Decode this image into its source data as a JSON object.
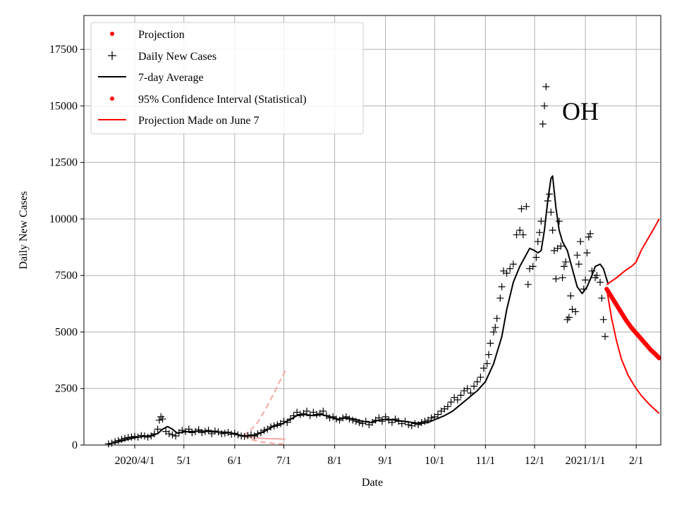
{
  "chart_data": {
    "type": "line",
    "state_label": "OH",
    "xlabel": "Date",
    "ylabel": "Daily New Cases",
    "xlim": [
      0,
      352
    ],
    "ylim": [
      0,
      19000
    ],
    "x_unit": "days since 2020-03-01",
    "x_ticks": [
      {
        "day": 31,
        "label": "2020/4/1"
      },
      {
        "day": 61,
        "label": "5/1"
      },
      {
        "day": 92,
        "label": "6/1"
      },
      {
        "day": 122,
        "label": "7/1"
      },
      {
        "day": 153,
        "label": "8/1"
      },
      {
        "day": 184,
        "label": "9/1"
      },
      {
        "day": 214,
        "label": "10/1"
      },
      {
        "day": 245,
        "label": "11/1"
      },
      {
        "day": 275,
        "label": "12/1"
      },
      {
        "day": 306,
        "label": "2021/1/1"
      },
      {
        "day": 337,
        "label": "2/1"
      }
    ],
    "y_ticks": [
      {
        "value": 0,
        "label": "0"
      },
      {
        "value": 2500,
        "label": "2500"
      },
      {
        "value": 5000,
        "label": "5000"
      },
      {
        "value": 7500,
        "label": "7500"
      },
      {
        "value": 10000,
        "label": "10000"
      },
      {
        "value": 12500,
        "label": "12500"
      },
      {
        "value": 15000,
        "label": "15000"
      },
      {
        "value": 17500,
        "label": "17500"
      }
    ],
    "grid": true,
    "legend": {
      "position": "top-left",
      "entries": [
        {
          "label": "Projection",
          "marker": "dot",
          "color": "#ff0000"
        },
        {
          "label": "Daily New Cases",
          "marker": "plus",
          "color": "#000000"
        },
        {
          "label": "7-day Average",
          "marker": "line",
          "color": "#000000"
        },
        {
          "label": "95% Confidence Interval (Statistical)",
          "marker": "dot",
          "color": "#ff0000"
        },
        {
          "label": "Projection Made on June 7",
          "marker": "line",
          "color": "#ff0000"
        }
      ]
    },
    "avg_keypoints": [
      [
        15,
        40
      ],
      [
        20,
        120
      ],
      [
        25,
        220
      ],
      [
        31,
        320
      ],
      [
        36,
        380
      ],
      [
        41,
        420
      ],
      [
        45,
        500
      ],
      [
        48,
        700
      ],
      [
        51,
        820
      ],
      [
        54,
        700
      ],
      [
        57,
        520
      ],
      [
        61,
        580
      ],
      [
        66,
        600
      ],
      [
        72,
        620
      ],
      [
        80,
        580
      ],
      [
        88,
        560
      ],
      [
        92,
        500
      ],
      [
        96,
        420
      ],
      [
        100,
        400
      ],
      [
        105,
        450
      ],
      [
        110,
        600
      ],
      [
        115,
        800
      ],
      [
        120,
        900
      ],
      [
        125,
        1100
      ],
      [
        130,
        1300
      ],
      [
        135,
        1350
      ],
      [
        140,
        1300
      ],
      [
        145,
        1350
      ],
      [
        150,
        1250
      ],
      [
        155,
        1150
      ],
      [
        160,
        1200
      ],
      [
        165,
        1150
      ],
      [
        170,
        1050
      ],
      [
        175,
        1000
      ],
      [
        180,
        1100
      ],
      [
        185,
        1150
      ],
      [
        190,
        1100
      ],
      [
        195,
        1050
      ],
      [
        200,
        1000
      ],
      [
        205,
        950
      ],
      [
        210,
        1000
      ],
      [
        215,
        1150
      ],
      [
        220,
        1300
      ],
      [
        225,
        1500
      ],
      [
        230,
        1800
      ],
      [
        235,
        2100
      ],
      [
        240,
        2400
      ],
      [
        245,
        2800
      ],
      [
        250,
        3600
      ],
      [
        255,
        4800
      ],
      [
        258,
        6000
      ],
      [
        262,
        7200
      ],
      [
        266,
        7900
      ],
      [
        269,
        8300
      ],
      [
        272,
        8700
      ],
      [
        275,
        8600
      ],
      [
        277,
        8500
      ],
      [
        279,
        8600
      ],
      [
        281,
        9500
      ],
      [
        283,
        10800
      ],
      [
        285,
        11800
      ],
      [
        286,
        11900
      ],
      [
        288,
        10500
      ],
      [
        290,
        9500
      ],
      [
        292,
        9000
      ],
      [
        295,
        8600
      ],
      [
        298,
        7800
      ],
      [
        301,
        7000
      ],
      [
        304,
        6700
      ],
      [
        307,
        7000
      ],
      [
        310,
        7500
      ],
      [
        312,
        7900
      ],
      [
        315,
        8000
      ],
      [
        317,
        7800
      ],
      [
        320,
        7100
      ]
    ],
    "daily_cases": [
      [
        15,
        50
      ],
      [
        17,
        80
      ],
      [
        19,
        150
      ],
      [
        21,
        200
      ],
      [
        23,
        250
      ],
      [
        25,
        300
      ],
      [
        27,
        330
      ],
      [
        29,
        350
      ],
      [
        31,
        380
      ],
      [
        33,
        350
      ],
      [
        35,
        420
      ],
      [
        37,
        400
      ],
      [
        39,
        350
      ],
      [
        41,
        400
      ],
      [
        43,
        500
      ],
      [
        45,
        700
      ],
      [
        46,
        1100
      ],
      [
        47,
        1250
      ],
      [
        48,
        1150
      ],
      [
        50,
        600
      ],
      [
        52,
        500
      ],
      [
        54,
        450
      ],
      [
        56,
        400
      ],
      [
        58,
        550
      ],
      [
        60,
        650
      ],
      [
        62,
        600
      ],
      [
        64,
        700
      ],
      [
        66,
        550
      ],
      [
        68,
        600
      ],
      [
        70,
        680
      ],
      [
        72,
        550
      ],
      [
        74,
        600
      ],
      [
        76,
        650
      ],
      [
        78,
        500
      ],
      [
        80,
        620
      ],
      [
        82,
        580
      ],
      [
        84,
        500
      ],
      [
        86,
        520
      ],
      [
        88,
        560
      ],
      [
        90,
        480
      ],
      [
        92,
        520
      ],
      [
        94,
        450
      ],
      [
        96,
        400
      ],
      [
        98,
        380
      ],
      [
        100,
        420
      ],
      [
        102,
        450
      ],
      [
        104,
        400
      ],
      [
        106,
        500
      ],
      [
        108,
        550
      ],
      [
        110,
        650
      ],
      [
        112,
        700
      ],
      [
        114,
        800
      ],
      [
        116,
        850
      ],
      [
        118,
        900
      ],
      [
        120,
        950
      ],
      [
        122,
        1050
      ],
      [
        124,
        1000
      ],
      [
        126,
        1150
      ],
      [
        128,
        1300
      ],
      [
        130,
        1450
      ],
      [
        132,
        1350
      ],
      [
        134,
        1400
      ],
      [
        136,
        1500
      ],
      [
        138,
        1300
      ],
      [
        140,
        1450
      ],
      [
        142,
        1350
      ],
      [
        144,
        1400
      ],
      [
        146,
        1500
      ],
      [
        148,
        1300
      ],
      [
        150,
        1200
      ],
      [
        152,
        1250
      ],
      [
        154,
        1150
      ],
      [
        156,
        1100
      ],
      [
        158,
        1200
      ],
      [
        160,
        1250
      ],
      [
        162,
        1150
      ],
      [
        164,
        1100
      ],
      [
        166,
        1050
      ],
      [
        168,
        1000
      ],
      [
        170,
        950
      ],
      [
        172,
        1050
      ],
      [
        174,
        900
      ],
      [
        176,
        1000
      ],
      [
        178,
        1100
      ],
      [
        180,
        1200
      ],
      [
        182,
        1050
      ],
      [
        184,
        1250
      ],
      [
        186,
        1100
      ],
      [
        188,
        1000
      ],
      [
        190,
        1150
      ],
      [
        192,
        1050
      ],
      [
        194,
        950
      ],
      [
        196,
        1050
      ],
      [
        198,
        900
      ],
      [
        200,
        850
      ],
      [
        202,
        950
      ],
      [
        204,
        900
      ],
      [
        206,
        1000
      ],
      [
        208,
        1050
      ],
      [
        210,
        1100
      ],
      [
        212,
        1200
      ],
      [
        214,
        1250
      ],
      [
        216,
        1350
      ],
      [
        218,
        1500
      ],
      [
        220,
        1600
      ],
      [
        222,
        1700
      ],
      [
        224,
        1900
      ],
      [
        226,
        2100
      ],
      [
        228,
        2000
      ],
      [
        230,
        2200
      ],
      [
        232,
        2400
      ],
      [
        234,
        2500
      ],
      [
        236,
        2300
      ],
      [
        238,
        2600
      ],
      [
        240,
        2800
      ],
      [
        242,
        3000
      ],
      [
        244,
        3400
      ],
      [
        246,
        3600
      ],
      [
        247,
        4000
      ],
      [
        248,
        4500
      ],
      [
        250,
        5000
      ],
      [
        251,
        5200
      ],
      [
        252,
        5600
      ],
      [
        254,
        6500
      ],
      [
        255,
        7000
      ],
      [
        256,
        7700
      ],
      [
        258,
        7600
      ],
      [
        260,
        7800
      ],
      [
        262,
        8000
      ],
      [
        264,
        9300
      ],
      [
        266,
        9500
      ],
      [
        267,
        10450
      ],
      [
        268,
        9300
      ],
      [
        270,
        10550
      ],
      [
        271,
        7100
      ],
      [
        272,
        7800
      ],
      [
        274,
        7900
      ],
      [
        276,
        8300
      ],
      [
        277,
        9000
      ],
      [
        278,
        9400
      ],
      [
        279,
        9900
      ],
      [
        280,
        14200
      ],
      [
        281,
        15000
      ],
      [
        282,
        15850
      ],
      [
        283,
        10800
      ],
      [
        284,
        11100
      ],
      [
        285,
        10300
      ],
      [
        286,
        9500
      ],
      [
        287,
        8600
      ],
      [
        288,
        7350
      ],
      [
        289,
        8700
      ],
      [
        290,
        9900
      ],
      [
        291,
        8800
      ],
      [
        292,
        7400
      ],
      [
        293,
        7900
      ],
      [
        294,
        8100
      ],
      [
        295,
        5550
      ],
      [
        296,
        5650
      ],
      [
        297,
        6600
      ],
      [
        298,
        6000
      ],
      [
        300,
        5900
      ],
      [
        301,
        8400
      ],
      [
        302,
        8000
      ],
      [
        303,
        9000
      ],
      [
        305,
        6900
      ],
      [
        306,
        7300
      ],
      [
        307,
        8500
      ],
      [
        308,
        9200
      ],
      [
        309,
        9350
      ],
      [
        310,
        7700
      ],
      [
        312,
        7400
      ],
      [
        313,
        7500
      ],
      [
        315,
        7200
      ],
      [
        316,
        6500
      ],
      [
        317,
        5550
      ],
      [
        318,
        4800
      ]
    ],
    "projection": [
      [
        319,
        6900
      ],
      [
        322,
        6550
      ],
      [
        325,
        6200
      ],
      [
        328,
        5850
      ],
      [
        331,
        5500
      ],
      [
        334,
        5200
      ],
      [
        337,
        4950
      ],
      [
        340,
        4700
      ],
      [
        343,
        4450
      ],
      [
        346,
        4200
      ],
      [
        349,
        4000
      ],
      [
        351,
        3850
      ]
    ],
    "ci_upper": [
      [
        319,
        7100
      ],
      [
        325,
        7400
      ],
      [
        330,
        7700
      ],
      [
        335,
        7950
      ],
      [
        337,
        8100
      ],
      [
        340,
        8600
      ],
      [
        344,
        9100
      ],
      [
        348,
        9600
      ],
      [
        351,
        10000
      ]
    ],
    "ci_lower": [
      [
        319,
        6900
      ],
      [
        322,
        5600
      ],
      [
        325,
        4600
      ],
      [
        328,
        3800
      ],
      [
        332,
        3100
      ],
      [
        336,
        2600
      ],
      [
        340,
        2200
      ],
      [
        345,
        1800
      ],
      [
        351,
        1400
      ]
    ],
    "june_projection_mean": [
      [
        97,
        400
      ],
      [
        102,
        330
      ],
      [
        107,
        300
      ],
      [
        113,
        280
      ],
      [
        118,
        270
      ],
      [
        123,
        260
      ]
    ],
    "june_projection_upper": [
      [
        97,
        400
      ],
      [
        101,
        600
      ],
      [
        106,
        1000
      ],
      [
        111,
        1600
      ],
      [
        116,
        2300
      ],
      [
        120,
        2900
      ],
      [
        123,
        3300
      ]
    ],
    "june_projection_lower": [
      [
        97,
        400
      ],
      [
        102,
        250
      ],
      [
        107,
        150
      ],
      [
        112,
        100
      ],
      [
        118,
        60
      ],
      [
        123,
        40
      ]
    ]
  }
}
